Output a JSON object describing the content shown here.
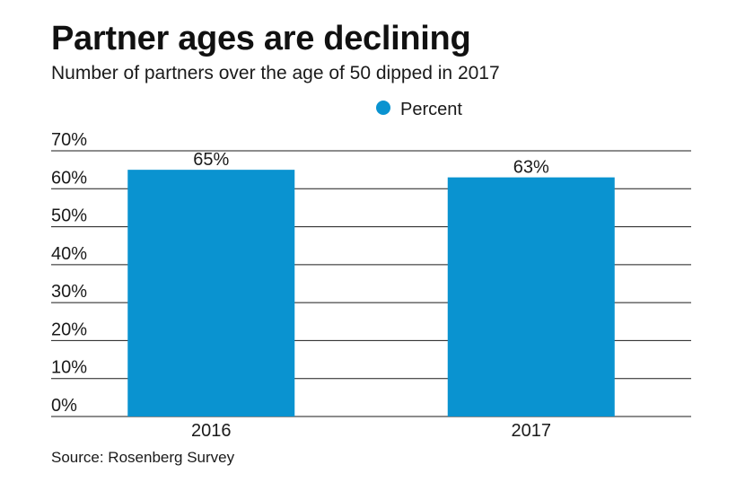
{
  "chart_data": {
    "type": "bar",
    "title": "Partner ages are declining",
    "subtitle": "Number of partners over the age of 50 dipped in 2017",
    "categories": [
      "2016",
      "2017"
    ],
    "series": [
      {
        "name": "Percent",
        "values": [
          65,
          63
        ],
        "labels": [
          "65%",
          "63%"
        ],
        "color": "#0a93d0"
      }
    ],
    "yticks": [
      0,
      10,
      20,
      30,
      40,
      50,
      60,
      70
    ],
    "ytick_labels": [
      "0%",
      "10%",
      "20%",
      "30%",
      "40%",
      "50%",
      "60%",
      "70%"
    ],
    "ylim": [
      0,
      70
    ],
    "xlabel": "",
    "ylabel": "",
    "legend_position": "top-center",
    "grid": true,
    "grid_color": "#1a1a1a",
    "source": "Source: Rosenberg Survey"
  }
}
